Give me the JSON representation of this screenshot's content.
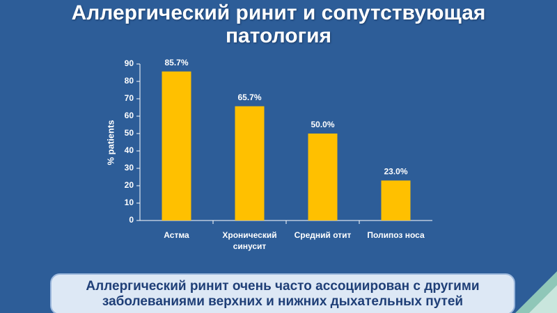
{
  "chart_data": {
    "type": "bar",
    "title": "Аллергический ринит и сопутствующая патология",
    "y_label": "% patients",
    "categories": [
      "Астма",
      "Хронический синусит",
      "Средний отит",
      "Полипоз носа"
    ],
    "values": [
      85.7,
      65.7,
      50.0,
      23.0
    ],
    "value_labels": [
      "85.7%",
      "65.7%",
      "50.0%",
      "23.0%"
    ],
    "color": "#ffc000",
    "ylim": [
      0,
      90
    ],
    "yticks": [
      0,
      10,
      20,
      30,
      40,
      50,
      60,
      70,
      80,
      90
    ],
    "grid": false,
    "note": "Аллергический ринит очень часто ассоциирован с другими заболеваниями верхних и нижних дыхательных путей"
  }
}
